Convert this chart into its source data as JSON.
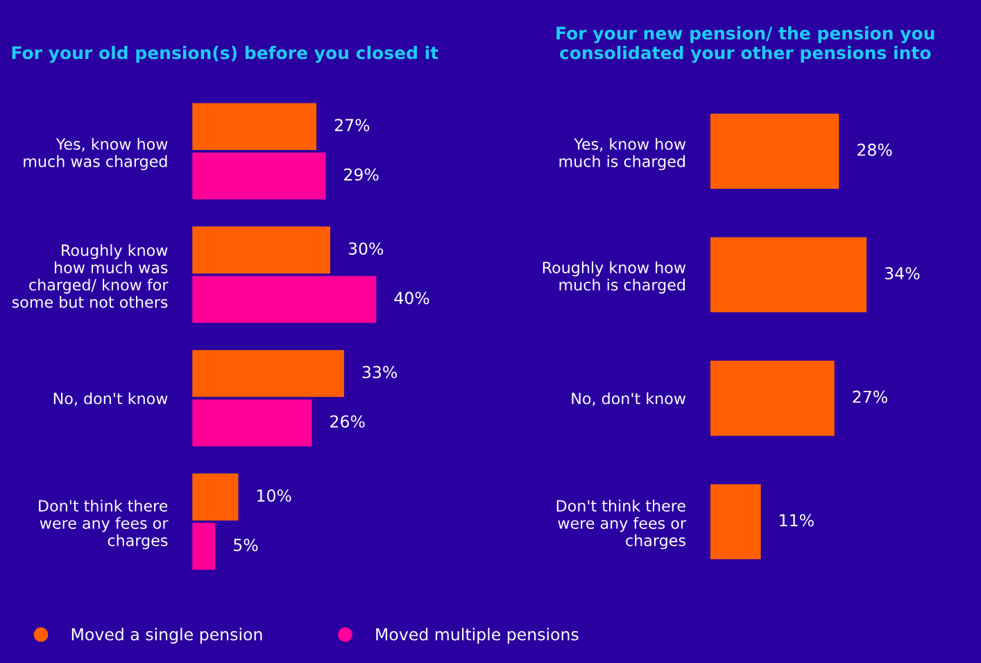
{
  "chart_data": [
    {
      "type": "bar",
      "orientation": "horizontal",
      "title": "For your old pension(s) before you closed it",
      "categories": [
        "Yes, know how\nmuch was charged",
        "Roughly know\nhow much was\ncharged/ know for\nsome but not others",
        "No, don't know",
        "Don't think there\nwere any fees or\ncharges"
      ],
      "series": [
        {
          "name": "Moved a single pension",
          "color": "#ff5f00",
          "values": [
            27,
            30,
            33,
            10
          ],
          "value_labels": [
            "27%",
            "30%",
            "33%",
            "10%"
          ]
        },
        {
          "name": "Moved multiple pensions",
          "color": "#ff0099",
          "values": [
            29,
            40,
            26,
            5
          ],
          "value_labels": [
            "29%",
            "40%",
            "26%",
            "5%"
          ]
        }
      ],
      "legend": "bottom",
      "grid": false,
      "tick_labels": "y"
    },
    {
      "type": "bar",
      "orientation": "horizontal",
      "title": "For your new pension/ the pension you\nconsolidated your other pensions into",
      "categories": [
        "Yes, know how\nmuch is charged",
        "Roughly know how\nmuch is charged",
        "No, don't know",
        "Don't think there\nwere any fees or\ncharges"
      ],
      "series": [
        {
          "color": "#ff5f00",
          "values": [
            28,
            34,
            27,
            11
          ],
          "value_labels": [
            "28%",
            "34%",
            "27%",
            "11%"
          ]
        }
      ],
      "grid": false,
      "tick_labels": "y"
    }
  ]
}
